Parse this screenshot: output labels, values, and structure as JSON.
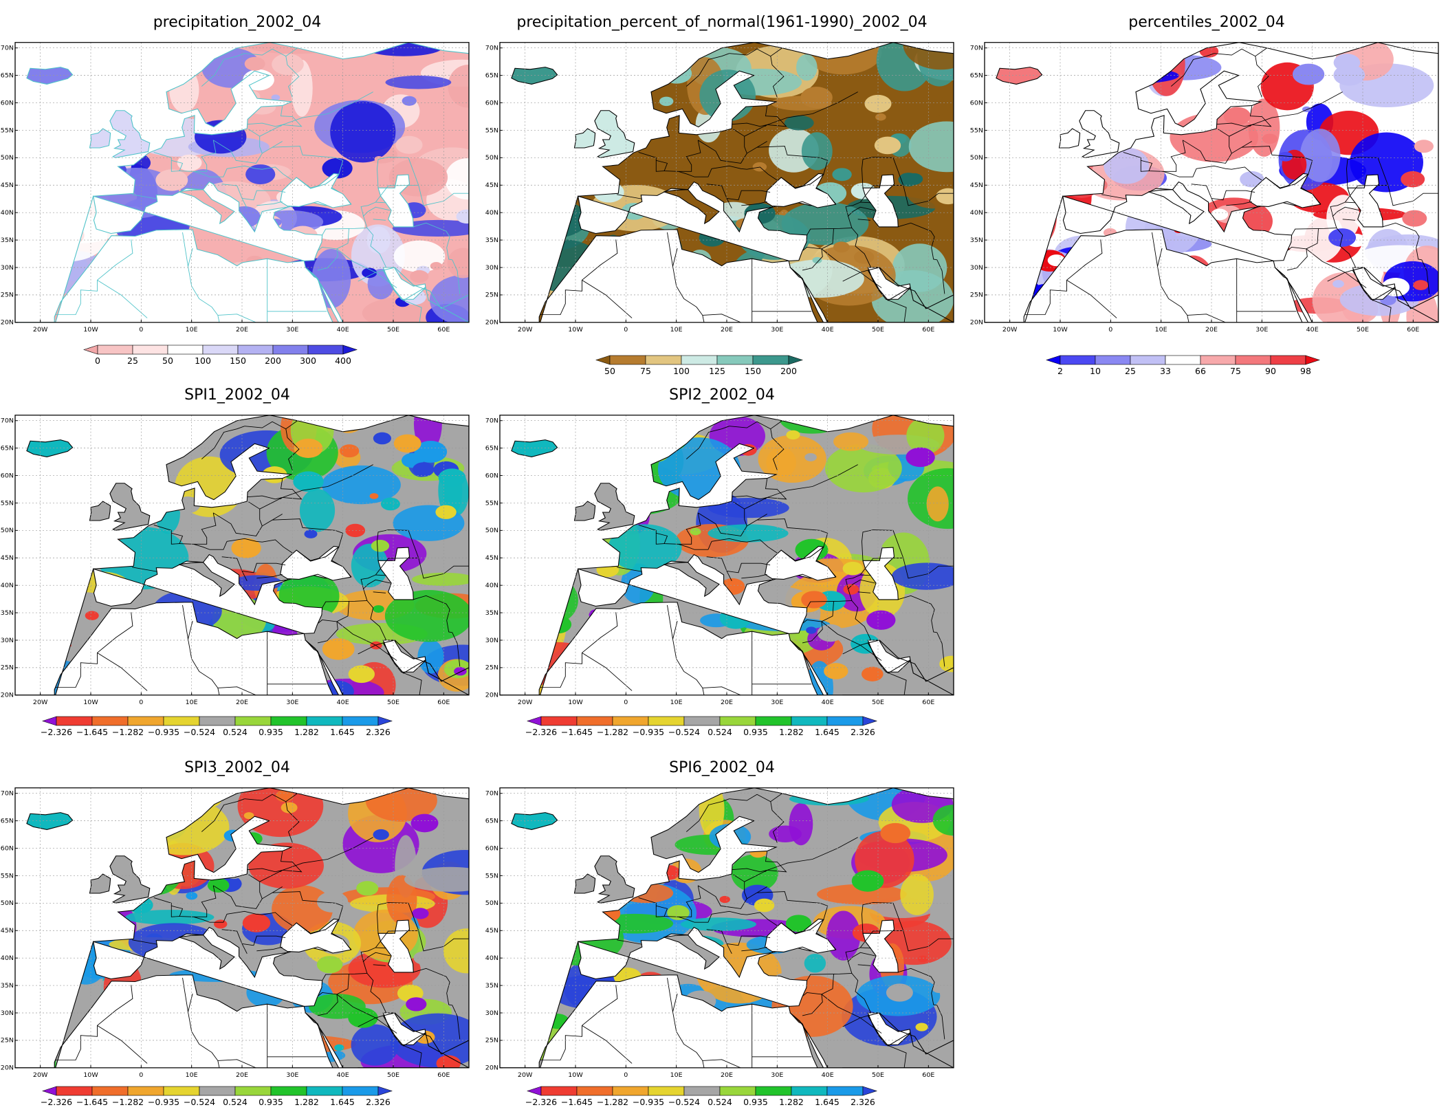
{
  "axes": {
    "x_ticks": [
      "20W",
      "10W",
      "0",
      "10E",
      "20E",
      "30E",
      "40E",
      "50E",
      "60E"
    ],
    "y_ticks": [
      "70N",
      "65N",
      "60N",
      "55N",
      "50N",
      "45N",
      "40N",
      "35N",
      "30N",
      "25N",
      "20N"
    ]
  },
  "scales": {
    "precip": {
      "labels": [
        "0",
        "25",
        "50",
        "100",
        "150",
        "200",
        "300",
        "400"
      ],
      "colors": [
        "#f2a7a8",
        "#f7c4c4",
        "#fde3e3",
        "#ffffff",
        "#dad8f7",
        "#b4b2f2",
        "#8280ec",
        "#4e4ce3",
        "#1d1bd9"
      ]
    },
    "pnorm": {
      "labels": [
        "50",
        "75",
        "100",
        "125",
        "150",
        "200"
      ],
      "colors": [
        "#8b5a12",
        "#b67c2f",
        "#e2c580",
        "#cdeae4",
        "#86c9bb",
        "#3c988d",
        "#1b6a62"
      ]
    },
    "pct": {
      "labels": [
        "2",
        "10",
        "25",
        "33",
        "66",
        "75",
        "90",
        "98"
      ],
      "colors": [
        "#0a00f5",
        "#4b48f2",
        "#8a88f2",
        "#c1c0f5",
        "#ffffff",
        "#f7a9ab",
        "#f3787c",
        "#ee3f46",
        "#ea0b14"
      ]
    },
    "spi": {
      "labels": [
        "-2.326",
        "-1.645",
        "-1.282",
        "-0.935",
        "-0.524",
        "0.524",
        "0.935",
        "1.282",
        "1.645",
        "2.326"
      ],
      "colors": [
        "#9011d6",
        "#ef3c32",
        "#f06e2b",
        "#f0a62e",
        "#e5d430",
        "#a6a6a6",
        "#99d63b",
        "#22c32b",
        "#10b8be",
        "#1a9ae8",
        "#2a45d9"
      ]
    }
  },
  "panels": [
    {
      "id": "precip",
      "title": "precipitation_2002_04",
      "scale": "precip",
      "base": "#f6b0b1",
      "line": "#4fc3c9"
    },
    {
      "id": "pnorm",
      "title": "precipitation_percent_of_normal(1961-1990)_2002_04",
      "scale": "pnorm",
      "base": "#8b5a12",
      "line": "#000000"
    },
    {
      "id": "pct",
      "title": "percentiles_2002_04",
      "scale": "pct",
      "base": "#ffffff",
      "line": "#000000"
    },
    {
      "id": "spi1",
      "title": "SPI1_2002_04",
      "scale": "spi",
      "base": "#a6a6a6",
      "line": "#000000"
    },
    {
      "id": "spi2",
      "title": "SPI2_2002_04",
      "scale": "spi",
      "base": "#a6a6a6",
      "line": "#000000"
    },
    {
      "id": "spi3",
      "title": "SPI3_2002_04",
      "scale": "spi",
      "base": "#a6a6a6",
      "line": "#000000"
    },
    {
      "id": "spi6",
      "title": "SPI6_2002_04",
      "scale": "spi",
      "base": "#a6a6a6",
      "line": "#000000"
    }
  ]
}
